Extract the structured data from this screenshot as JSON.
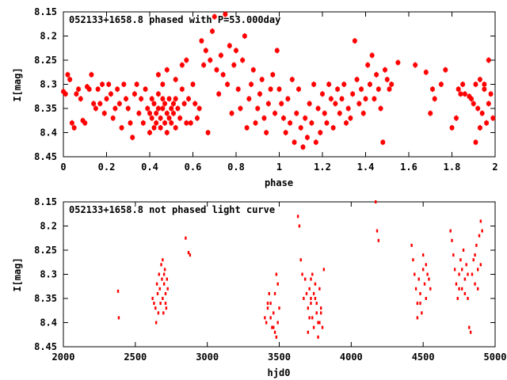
{
  "chart_data": [
    {
      "type": "scatter",
      "title": "052133+1658.8 phased with P=53.000day",
      "xlabel": "phase",
      "ylabel": "I[mag]",
      "xlim": [
        0,
        2
      ],
      "ylim": [
        8.45,
        8.15
      ],
      "y_inverted": true,
      "grid": false,
      "xticks": [
        "0",
        "0.2",
        "0.4",
        "0.6",
        "0.8",
        "1",
        "1.2",
        "1.4",
        "1.6",
        "1.8",
        "2"
      ],
      "yticks": [
        "8.15",
        "8.2",
        "8.25",
        "8.3",
        "8.35",
        "8.4",
        "8.45"
      ],
      "marker": "error-bar-cross",
      "color": "#ff0000",
      "points": [
        [
          0.0,
          8.315
        ],
        [
          0.01,
          8.32
        ],
        [
          0.02,
          8.28
        ],
        [
          0.03,
          8.29
        ],
        [
          0.04,
          8.38
        ],
        [
          0.05,
          8.39
        ],
        [
          0.06,
          8.32
        ],
        [
          0.07,
          8.31
        ],
        [
          0.08,
          8.33
        ],
        [
          0.09,
          8.375
        ],
        [
          0.1,
          8.38
        ],
        [
          0.11,
          8.305
        ],
        [
          0.12,
          8.31
        ],
        [
          0.13,
          8.28
        ],
        [
          0.14,
          8.34
        ],
        [
          0.15,
          8.35
        ],
        [
          0.16,
          8.31
        ],
        [
          0.17,
          8.34
        ],
        [
          0.18,
          8.3
        ],
        [
          0.19,
          8.36
        ],
        [
          0.2,
          8.33
        ],
        [
          0.21,
          8.3
        ],
        [
          0.22,
          8.32
        ],
        [
          0.23,
          8.37
        ],
        [
          0.24,
          8.35
        ],
        [
          0.25,
          8.31
        ],
        [
          0.26,
          8.34
        ],
        [
          0.27,
          8.39
        ],
        [
          0.28,
          8.3
        ],
        [
          0.29,
          8.33
        ],
        [
          0.3,
          8.35
        ],
        [
          0.31,
          8.38
        ],
        [
          0.32,
          8.41
        ],
        [
          0.33,
          8.32
        ],
        [
          0.34,
          8.3
        ],
        [
          0.35,
          8.36
        ],
        [
          0.36,
          8.33
        ],
        [
          0.37,
          8.38
        ],
        [
          0.38,
          8.31
        ],
        [
          0.39,
          8.35
        ],
        [
          0.4,
          8.4
        ],
        [
          0.4,
          8.36
        ],
        [
          0.41,
          8.37
        ],
        [
          0.41,
          8.33
        ],
        [
          0.42,
          8.39
        ],
        [
          0.42,
          8.34
        ],
        [
          0.43,
          8.38
        ],
        [
          0.43,
          8.36
        ],
        [
          0.44,
          8.32
        ],
        [
          0.44,
          8.35
        ],
        [
          0.45,
          8.37
        ],
        [
          0.45,
          8.39
        ],
        [
          0.46,
          8.35
        ],
        [
          0.46,
          8.33
        ],
        [
          0.47,
          8.38
        ],
        [
          0.47,
          8.34
        ],
        [
          0.48,
          8.36
        ],
        [
          0.48,
          8.4
        ],
        [
          0.49,
          8.33
        ],
        [
          0.49,
          8.37
        ],
        [
          0.5,
          8.35
        ],
        [
          0.5,
          8.38
        ],
        [
          0.51,
          8.34
        ],
        [
          0.51,
          8.36
        ],
        [
          0.52,
          8.39
        ],
        [
          0.52,
          8.33
        ],
        [
          0.53,
          8.35
        ],
        [
          0.54,
          8.37
        ],
        [
          0.55,
          8.31
        ],
        [
          0.56,
          8.34
        ],
        [
          0.57,
          8.38
        ],
        [
          0.58,
          8.33
        ],
        [
          0.59,
          8.38
        ],
        [
          0.6,
          8.3
        ],
        [
          0.61,
          8.34
        ],
        [
          0.62,
          8.37
        ],
        [
          0.44,
          8.28
        ],
        [
          0.46,
          8.3
        ],
        [
          0.48,
          8.27
        ],
        [
          0.52,
          8.29
        ],
        [
          0.55,
          8.26
        ],
        [
          0.57,
          8.25
        ],
        [
          0.6,
          8.3
        ],
        [
          0.63,
          8.35
        ],
        [
          0.64,
          8.21
        ],
        [
          0.65,
          8.26
        ],
        [
          0.66,
          8.23
        ],
        [
          0.67,
          8.4
        ],
        [
          0.68,
          8.25
        ],
        [
          0.69,
          8.19
        ],
        [
          0.7,
          8.16
        ],
        [
          0.71,
          8.27
        ],
        [
          0.72,
          8.32
        ],
        [
          0.73,
          8.24
        ],
        [
          0.74,
          8.28
        ],
        [
          0.75,
          8.155
        ],
        [
          0.76,
          8.3
        ],
        [
          0.77,
          8.22
        ],
        [
          0.78,
          8.36
        ],
        [
          0.79,
          8.26
        ],
        [
          0.8,
          8.23
        ],
        [
          0.81,
          8.31
        ],
        [
          0.82,
          8.35
        ],
        [
          0.83,
          8.25
        ],
        [
          0.84,
          8.2
        ],
        [
          0.85,
          8.39
        ],
        [
          0.86,
          8.33
        ],
        [
          0.87,
          8.3
        ],
        [
          0.88,
          8.27
        ],
        [
          0.89,
          8.38
        ],
        [
          0.9,
          8.35
        ],
        [
          0.91,
          8.32
        ],
        [
          0.92,
          8.29
        ],
        [
          0.93,
          8.37
        ],
        [
          0.94,
          8.4
        ],
        [
          0.95,
          8.34
        ],
        [
          0.96,
          8.31
        ],
        [
          0.97,
          8.28
        ],
        [
          0.98,
          8.36
        ],
        [
          0.99,
          8.23
        ],
        [
          1.0,
          8.31
        ],
        [
          1.01,
          8.34
        ],
        [
          1.02,
          8.37
        ],
        [
          1.03,
          8.4
        ],
        [
          1.04,
          8.33
        ],
        [
          1.05,
          8.38
        ],
        [
          1.06,
          8.29
        ],
        [
          1.07,
          8.42
        ],
        [
          1.08,
          8.36
        ],
        [
          1.09,
          8.31
        ],
        [
          1.1,
          8.39
        ],
        [
          1.11,
          8.43
        ],
        [
          1.12,
          8.37
        ],
        [
          1.13,
          8.41
        ],
        [
          1.14,
          8.34
        ],
        [
          1.15,
          8.38
        ],
        [
          1.16,
          8.3
        ],
        [
          1.17,
          8.42
        ],
        [
          1.18,
          8.35
        ],
        [
          1.19,
          8.4
        ],
        [
          1.2,
          8.32
        ],
        [
          1.21,
          8.36
        ],
        [
          1.22,
          8.38
        ],
        [
          1.23,
          8.3
        ],
        [
          1.24,
          8.33
        ],
        [
          1.25,
          8.39
        ],
        [
          1.26,
          8.34
        ],
        [
          1.27,
          8.31
        ],
        [
          1.28,
          8.36
        ],
        [
          1.29,
          8.33
        ],
        [
          1.3,
          8.3
        ],
        [
          1.31,
          8.38
        ],
        [
          1.32,
          8.35
        ],
        [
          1.33,
          8.37
        ],
        [
          1.34,
          8.32
        ],
        [
          1.35,
          8.21
        ],
        [
          1.36,
          8.29
        ],
        [
          1.37,
          8.34
        ],
        [
          1.38,
          8.31
        ],
        [
          1.39,
          8.36
        ],
        [
          1.4,
          8.33
        ],
        [
          1.41,
          8.26
        ],
        [
          1.42,
          8.3
        ],
        [
          1.43,
          8.24
        ],
        [
          1.44,
          8.33
        ],
        [
          1.45,
          8.28
        ],
        [
          1.46,
          8.31
        ],
        [
          1.47,
          8.35
        ],
        [
          1.48,
          8.42
        ],
        [
          1.49,
          8.27
        ],
        [
          1.5,
          8.29
        ],
        [
          1.51,
          8.31
        ],
        [
          1.52,
          8.3
        ],
        [
          1.55,
          8.255
        ],
        [
          1.63,
          8.26
        ],
        [
          1.68,
          8.275
        ],
        [
          1.7,
          8.36
        ],
        [
          1.71,
          8.31
        ],
        [
          1.72,
          8.33
        ],
        [
          1.75,
          8.3
        ],
        [
          1.77,
          8.27
        ],
        [
          1.8,
          8.39
        ],
        [
          1.82,
          8.37
        ],
        [
          1.83,
          8.31
        ],
        [
          1.84,
          8.32
        ],
        [
          1.85,
          8.3
        ],
        [
          1.86,
          8.32
        ],
        [
          1.88,
          8.325
        ],
        [
          1.89,
          8.33
        ],
        [
          1.9,
          8.34
        ],
        [
          1.91,
          8.3
        ],
        [
          1.92,
          8.35
        ],
        [
          1.93,
          8.39
        ],
        [
          1.94,
          8.36
        ],
        [
          1.95,
          8.31
        ],
        [
          1.96,
          8.38
        ],
        [
          1.97,
          8.34
        ],
        [
          1.98,
          8.32
        ],
        [
          1.99,
          8.37
        ],
        [
          1.91,
          8.42
        ],
        [
          1.93,
          8.29
        ],
        [
          1.95,
          8.3
        ],
        [
          1.97,
          8.25
        ]
      ]
    },
    {
      "type": "scatter",
      "title": "052133+1658.8 not phased light curve",
      "xlabel": "hjd0",
      "ylabel": "I[mag]",
      "xlim": [
        2000,
        5000
      ],
      "ylim": [
        8.45,
        8.15
      ],
      "y_inverted": true,
      "grid": false,
      "xticks": [
        "2000",
        "2500",
        "3000",
        "3500",
        "4000",
        "4500",
        "5000"
      ],
      "yticks": [
        "8.15",
        "8.2",
        "8.25",
        "8.3",
        "8.35",
        "8.4",
        "8.45"
      ],
      "marker": "dot",
      "color": "#ff0000",
      "points": [
        [
          2380,
          8.335
        ],
        [
          2385,
          8.39
        ],
        [
          2620,
          8.35
        ],
        [
          2630,
          8.36
        ],
        [
          2640,
          8.37
        ],
        [
          2645,
          8.4
        ],
        [
          2650,
          8.32
        ],
        [
          2655,
          8.34
        ],
        [
          2660,
          8.38
        ],
        [
          2665,
          8.3
        ],
        [
          2670,
          8.33
        ],
        [
          2675,
          8.36
        ],
        [
          2680,
          8.28
        ],
        [
          2685,
          8.31
        ],
        [
          2690,
          8.35
        ],
        [
          2695,
          8.38
        ],
        [
          2700,
          8.32
        ],
        [
          2705,
          8.29
        ],
        [
          2710,
          8.34
        ],
        [
          2715,
          8.37
        ],
        [
          2720,
          8.31
        ],
        [
          2725,
          8.33
        ],
        [
          2690,
          8.27
        ],
        [
          2700,
          8.3
        ],
        [
          2710,
          8.36
        ],
        [
          2850,
          8.225
        ],
        [
          2870,
          8.255
        ],
        [
          2880,
          8.26
        ],
        [
          3400,
          8.39
        ],
        [
          3410,
          8.4
        ],
        [
          3420,
          8.37
        ],
        [
          3430,
          8.34
        ],
        [
          3440,
          8.36
        ],
        [
          3450,
          8.41
        ],
        [
          3460,
          8.38
        ],
        [
          3470,
          8.42
        ],
        [
          3480,
          8.43
        ],
        [
          3490,
          8.4
        ],
        [
          3500,
          8.37
        ],
        [
          3420,
          8.36
        ],
        [
          3440,
          8.39
        ],
        [
          3460,
          8.41
        ],
        [
          3470,
          8.34
        ],
        [
          3480,
          8.3
        ],
        [
          3490,
          8.32
        ],
        [
          3630,
          8.18
        ],
        [
          3640,
          8.2
        ],
        [
          3650,
          8.27
        ],
        [
          3660,
          8.3
        ],
        [
          3670,
          8.35
        ],
        [
          3680,
          8.31
        ],
        [
          3690,
          8.34
        ],
        [
          3700,
          8.37
        ],
        [
          3710,
          8.33
        ],
        [
          3720,
          8.36
        ],
        [
          3730,
          8.39
        ],
        [
          3740,
          8.41
        ],
        [
          3750,
          8.35
        ],
        [
          3760,
          8.38
        ],
        [
          3770,
          8.43
        ],
        [
          3780,
          8.4
        ],
        [
          3790,
          8.37
        ],
        [
          3800,
          8.41
        ],
        [
          3810,
          8.29
        ],
        [
          3720,
          8.31
        ],
        [
          3730,
          8.3
        ],
        [
          3740,
          8.34
        ],
        [
          3750,
          8.32
        ],
        [
          3760,
          8.36
        ],
        [
          3770,
          8.4
        ],
        [
          3780,
          8.33
        ],
        [
          3790,
          8.38
        ],
        [
          3700,
          8.42
        ],
        [
          3710,
          8.39
        ],
        [
          3720,
          8.35
        ],
        [
          4170,
          8.15
        ],
        [
          4180,
          8.21
        ],
        [
          4190,
          8.23
        ],
        [
          4420,
          8.24
        ],
        [
          4430,
          8.27
        ],
        [
          4440,
          8.3
        ],
        [
          4450,
          8.33
        ],
        [
          4460,
          8.36
        ],
        [
          4470,
          8.31
        ],
        [
          4480,
          8.34
        ],
        [
          4490,
          8.38
        ],
        [
          4500,
          8.29
        ],
        [
          4510,
          8.32
        ],
        [
          4520,
          8.35
        ],
        [
          4530,
          8.3
        ],
        [
          4540,
          8.31
        ],
        [
          4550,
          8.33
        ],
        [
          4460,
          8.39
        ],
        [
          4480,
          8.36
        ],
        [
          4500,
          8.26
        ],
        [
          4520,
          8.28
        ],
        [
          4690,
          8.21
        ],
        [
          4700,
          8.23
        ],
        [
          4710,
          8.26
        ],
        [
          4720,
          8.29
        ],
        [
          4730,
          8.32
        ],
        [
          4740,
          8.35
        ],
        [
          4750,
          8.3
        ],
        [
          4760,
          8.27
        ],
        [
          4770,
          8.33
        ],
        [
          4780,
          8.25
        ],
        [
          4790,
          8.31
        ],
        [
          4800,
          8.28
        ],
        [
          4810,
          8.35
        ],
        [
          4820,
          8.41
        ],
        [
          4830,
          8.42
        ],
        [
          4840,
          8.3
        ],
        [
          4850,
          8.27
        ],
        [
          4860,
          8.32
        ],
        [
          4870,
          8.24
        ],
        [
          4880,
          8.29
        ],
        [
          4890,
          8.22
        ],
        [
          4900,
          8.19
        ],
        [
          4910,
          8.21
        ],
        [
          4860,
          8.26
        ],
        [
          4880,
          8.33
        ],
        [
          4900,
          8.28
        ],
        [
          4750,
          8.33
        ],
        [
          4770,
          8.29
        ],
        [
          4790,
          8.34
        ],
        [
          4810,
          8.3
        ]
      ]
    }
  ]
}
